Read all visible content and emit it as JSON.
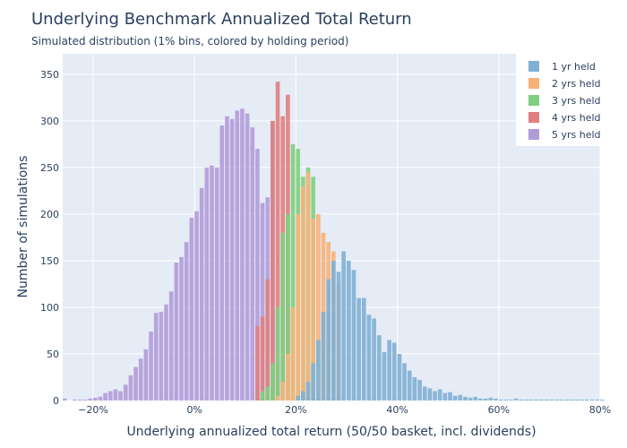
{
  "chart_data": {
    "type": "bar",
    "title": "Underlying Benchmark Annualized Total Return",
    "subtitle": "Simulated distribution (1% bins, colored by holding period)",
    "xlabel": "Underlying annualized total return (50/50 basket, incl. dividends)",
    "ylabel": "Number of simulations",
    "xlim": [
      -26,
      80
    ],
    "ylim": [
      0,
      372
    ],
    "x_ticks": [
      {
        "value": -20,
        "label": "−20%"
      },
      {
        "value": 0,
        "label": "0%"
      },
      {
        "value": 20,
        "label": "20%"
      },
      {
        "value": 40,
        "label": "40%"
      },
      {
        "value": 60,
        "label": "60%"
      },
      {
        "value": 80,
        "label": "80%"
      }
    ],
    "y_ticks": [
      0,
      50,
      100,
      150,
      200,
      250,
      300,
      350
    ],
    "bin_width": 1,
    "grid": true,
    "legend_position": "top-right",
    "series": [
      {
        "name": "5 yrs held",
        "color": "#b19cd9",
        "x": [
          -26,
          -24,
          -23,
          -22,
          -21,
          -20,
          -19,
          -18,
          -17,
          -16,
          -15,
          -14,
          -13,
          -12,
          -11,
          -10,
          -9,
          -8,
          -7,
          -6,
          -5,
          -4,
          -3,
          -2,
          -1,
          0,
          1,
          2,
          3,
          4,
          5,
          6,
          7,
          8,
          9,
          10,
          11,
          12,
          13,
          14,
          15
        ],
        "values": [
          2,
          1,
          1,
          1,
          2,
          3,
          4,
          8,
          10,
          12,
          10,
          17,
          27,
          36,
          45,
          55,
          74,
          94,
          95,
          103,
          117,
          148,
          154,
          170,
          196,
          203,
          228,
          250,
          252,
          250,
          295,
          305,
          302,
          311,
          313,
          308,
          293,
          270,
          212,
          218,
          300
        ]
      },
      {
        "name": "4 yrs held",
        "color": "#e07f7f",
        "x": [
          12,
          13,
          14,
          15,
          16,
          17,
          18
        ],
        "values": [
          80,
          90,
          130,
          300,
          342,
          305,
          328
        ]
      },
      {
        "name": "3 yrs held",
        "color": "#7fcf7f",
        "x": [
          13,
          14,
          15,
          16,
          17,
          18,
          19,
          20,
          21,
          22,
          23
        ],
        "values": [
          10,
          15,
          40,
          100,
          180,
          200,
          275,
          270,
          240,
          250,
          240
        ]
      },
      {
        "name": "2 yrs held",
        "color": "#f7b27a",
        "x": [
          16,
          17,
          18,
          19,
          20,
          21,
          22,
          23,
          24,
          25,
          26,
          27,
          28
        ],
        "values": [
          5,
          20,
          50,
          100,
          200,
          230,
          245,
          195,
          200,
          180,
          170,
          160,
          125
        ]
      },
      {
        "name": "1 yr held",
        "color": "#7fb0d5",
        "x": [
          20,
          21,
          22,
          23,
          24,
          25,
          26,
          27,
          28,
          29,
          30,
          31,
          32,
          33,
          34,
          35,
          36,
          37,
          38,
          39,
          40,
          41,
          42,
          43,
          44,
          45,
          46,
          47,
          48,
          49,
          50,
          51,
          52,
          53,
          54,
          55,
          56,
          57,
          58,
          59,
          60,
          61,
          62,
          63,
          64,
          65,
          66,
          67,
          68,
          69,
          70,
          71,
          72,
          73,
          74,
          75,
          76,
          77,
          78,
          79,
          80
        ],
        "values": [
          5,
          10,
          20,
          40,
          65,
          95,
          130,
          150,
          138,
          160,
          150,
          140,
          110,
          110,
          92,
          88,
          70,
          52,
          65,
          62,
          50,
          40,
          32,
          25,
          22,
          15,
          13,
          10,
          12,
          8,
          9,
          5,
          6,
          4,
          3,
          4,
          2,
          2,
          3,
          2,
          1,
          1,
          1,
          2,
          1,
          1,
          1,
          1,
          1,
          1,
          1,
          1,
          1,
          1,
          1,
          1,
          1,
          1,
          1,
          1,
          1
        ]
      }
    ]
  }
}
